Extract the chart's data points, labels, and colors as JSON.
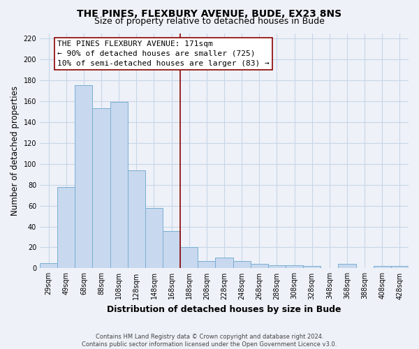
{
  "title": "THE PINES, FLEXBURY AVENUE, BUDE, EX23 8NS",
  "subtitle": "Size of property relative to detached houses in Bude",
  "xlabel": "Distribution of detached houses by size in Bude",
  "ylabel": "Number of detached properties",
  "bar_labels": [
    "29sqm",
    "49sqm",
    "68sqm",
    "88sqm",
    "108sqm",
    "128sqm",
    "148sqm",
    "168sqm",
    "188sqm",
    "208sqm",
    "228sqm",
    "248sqm",
    "268sqm",
    "288sqm",
    "308sqm",
    "328sqm",
    "348sqm",
    "368sqm",
    "388sqm",
    "408sqm",
    "428sqm"
  ],
  "bar_values": [
    5,
    78,
    175,
    153,
    159,
    94,
    58,
    36,
    20,
    7,
    10,
    7,
    4,
    3,
    3,
    2,
    0,
    4,
    0,
    2,
    2
  ],
  "bar_color": "#c8d8ee",
  "bar_edge_color": "#7aafd4",
  "ylim": [
    0,
    225
  ],
  "yticks": [
    0,
    20,
    40,
    60,
    80,
    100,
    120,
    140,
    160,
    180,
    200,
    220
  ],
  "vline_x": 7.5,
  "vline_color": "#8b0000",
  "annotation_line1": "THE PINES FLEXBURY AVENUE: 171sqm",
  "annotation_line2": "← 90% of detached houses are smaller (725)",
  "annotation_line3": "10% of semi-detached houses are larger (83) →",
  "footer_text": "Contains HM Land Registry data © Crown copyright and database right 2024.\nContains public sector information licensed under the Open Government Licence v3.0.",
  "background_color": "#eef2f8",
  "grid_color": "#d8e0ee",
  "title_fontsize": 10,
  "subtitle_fontsize": 9,
  "axis_label_fontsize": 8.5,
  "tick_fontsize": 7,
  "annot_fontsize": 8,
  "footer_fontsize": 6
}
